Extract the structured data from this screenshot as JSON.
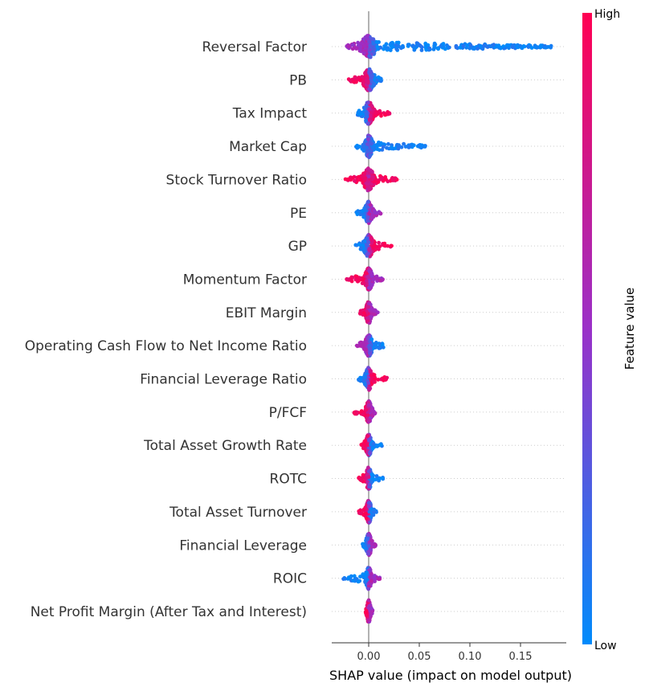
{
  "chart_data": {
    "type": "scatter",
    "subtype": "shap-beeswarm-summary",
    "features": [
      {
        "name": "Reversal Factor",
        "xmin": -0.022,
        "xmax": 0.185,
        "right_tail_color": "low",
        "left_tail_color": "mixed",
        "core_half_width": 0.008
      },
      {
        "name": "PB",
        "xmin": -0.02,
        "xmax": 0.013,
        "right_tail_color": "low",
        "left_tail_color": "high",
        "core_half_width": 0.006
      },
      {
        "name": "Tax Impact",
        "xmin": -0.013,
        "xmax": 0.021,
        "right_tail_color": "high",
        "left_tail_color": "low",
        "core_half_width": 0.005
      },
      {
        "name": "Market Cap",
        "xmin": -0.013,
        "xmax": 0.058,
        "right_tail_color": "low",
        "left_tail_color": "low",
        "core_half_width": 0.004
      },
      {
        "name": "Stock Turnover Ratio",
        "xmin": -0.023,
        "xmax": 0.028,
        "right_tail_color": "high",
        "left_tail_color": "high",
        "core_half_width": 0.006
      },
      {
        "name": "PE",
        "xmin": -0.013,
        "xmax": 0.012,
        "right_tail_color": "mid",
        "left_tail_color": "low",
        "core_half_width": 0.004
      },
      {
        "name": "GP",
        "xmin": -0.013,
        "xmax": 0.023,
        "right_tail_color": "high",
        "left_tail_color": "low",
        "core_half_width": 0.005
      },
      {
        "name": "Momentum Factor",
        "xmin": -0.023,
        "xmax": 0.014,
        "right_tail_color": "mid",
        "left_tail_color": "high",
        "core_half_width": 0.004
      },
      {
        "name": "EBIT Margin",
        "xmin": -0.01,
        "xmax": 0.009,
        "right_tail_color": "mid",
        "left_tail_color": "high",
        "core_half_width": 0.003
      },
      {
        "name": "Operating Cash Flow to Net Income Ratio",
        "xmin": -0.013,
        "xmax": 0.018,
        "right_tail_color": "low",
        "left_tail_color": "mid",
        "core_half_width": 0.004
      },
      {
        "name": "Financial Leverage Ratio",
        "xmin": -0.01,
        "xmax": 0.019,
        "right_tail_color": "high",
        "left_tail_color": "low",
        "core_half_width": 0.004
      },
      {
        "name": "P/FCF",
        "xmin": -0.016,
        "xmax": 0.007,
        "right_tail_color": "mid",
        "left_tail_color": "high",
        "core_half_width": 0.003
      },
      {
        "name": "Total Asset Growth Rate",
        "xmin": -0.008,
        "xmax": 0.013,
        "right_tail_color": "low",
        "left_tail_color": "high",
        "core_half_width": 0.003
      },
      {
        "name": "ROTC",
        "xmin": -0.01,
        "xmax": 0.015,
        "right_tail_color": "low",
        "left_tail_color": "high",
        "core_half_width": 0.003
      },
      {
        "name": "Total Asset Turnover",
        "xmin": -0.01,
        "xmax": 0.008,
        "right_tail_color": "low",
        "left_tail_color": "high",
        "core_half_width": 0.003
      },
      {
        "name": "Financial Leverage",
        "xmin": -0.006,
        "xmax": 0.007,
        "right_tail_color": "mid",
        "left_tail_color": "low",
        "core_half_width": 0.003
      },
      {
        "name": "ROIC",
        "xmin": -0.025,
        "xmax": 0.011,
        "right_tail_color": "mid",
        "left_tail_color": "low",
        "core_half_width": 0.003
      },
      {
        "name": "Net Profit Margin (After Tax and Interest)",
        "xmin": -0.003,
        "xmax": 0.004,
        "right_tail_color": "mid",
        "left_tail_color": "high",
        "core_half_width": 0.002
      }
    ],
    "xlabel": "SHAP value (impact on model output)",
    "xlim": [
      -0.035,
      0.19
    ],
    "xticks": [
      0.0,
      0.05,
      0.1,
      0.15
    ],
    "xtick_labels": [
      "0.00",
      "0.05",
      "0.10",
      "0.15"
    ],
    "colorbar": {
      "title": "Feature value",
      "high_label": "High",
      "low_label": "Low",
      "high_color": "#ff0052",
      "mid_color": "#9a30c8",
      "low_color": "#008bfb"
    },
    "grid": "dotted horizontal row guides",
    "zero_line": true
  }
}
